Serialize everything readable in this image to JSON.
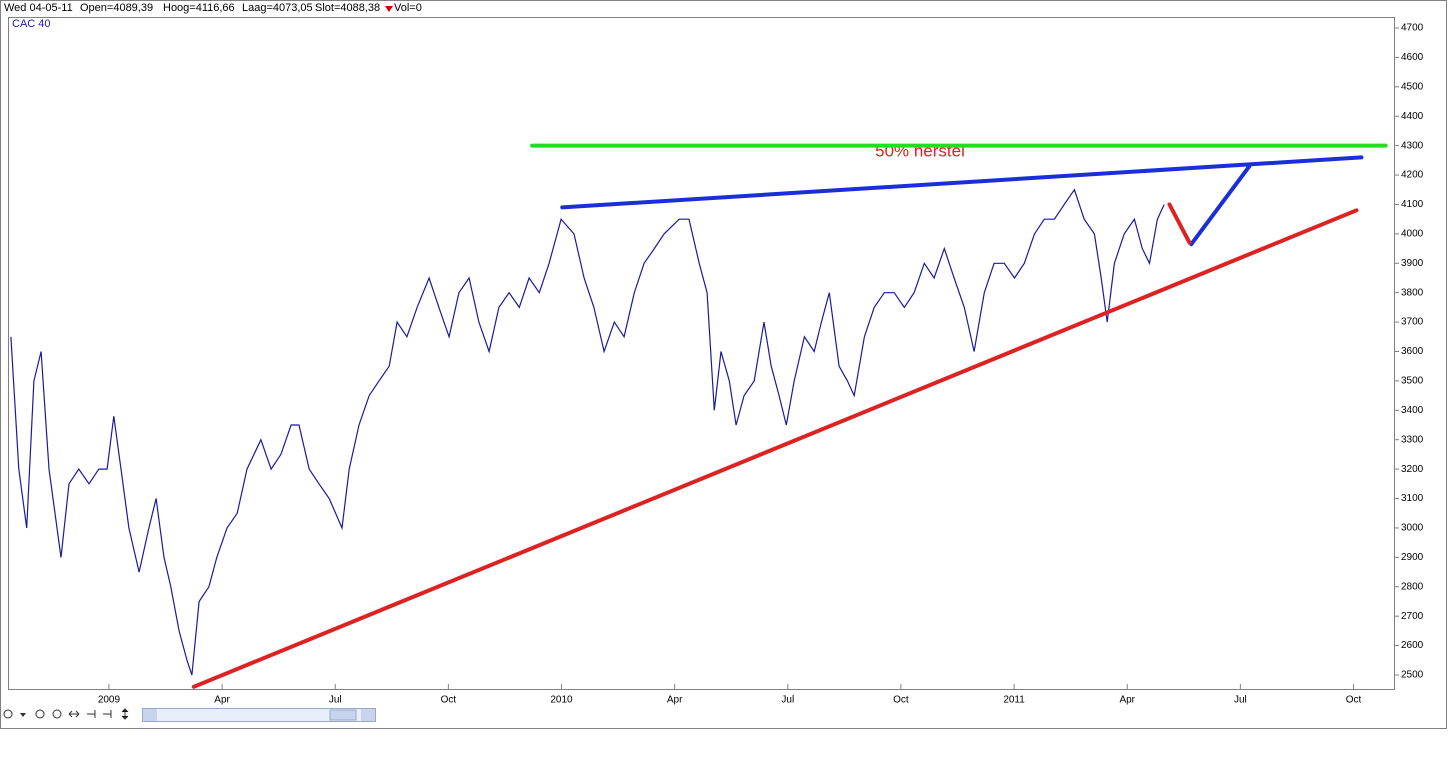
{
  "header": {
    "date": "Wed 04-05-11",
    "open": "Open=4089,39",
    "high": "Hoog=4116,66",
    "low": "Laag=4073,05",
    "close": "Slot=4088,38",
    "volume": "Vol=0"
  },
  "chart_data": {
    "type": "line",
    "title": "CAC 40",
    "annotation": "50% herstel",
    "xlim": [
      -2.65,
      34.1
    ],
    "ylim": [
      2449,
      4734
    ],
    "xticks": [
      {
        "value": 0,
        "label": "2009"
      },
      {
        "value": 3,
        "label": "Apr"
      },
      {
        "value": 6,
        "label": "Jul"
      },
      {
        "value": 9,
        "label": "Oct"
      },
      {
        "value": 12,
        "label": "2010"
      },
      {
        "value": 15,
        "label": "Apr"
      },
      {
        "value": 18,
        "label": "Jul"
      },
      {
        "value": 21,
        "label": "Oct"
      },
      {
        "value": 24,
        "label": "2011"
      },
      {
        "value": 27,
        "label": "Apr"
      },
      {
        "value": 30,
        "label": "Jul"
      },
      {
        "value": 33,
        "label": "Oct"
      }
    ],
    "yticks": [
      2500,
      2600,
      2700,
      2800,
      2900,
      3000,
      3100,
      3200,
      3300,
      3400,
      3500,
      3600,
      3700,
      3800,
      3900,
      4000,
      4100,
      4200,
      4300,
      4400,
      4500,
      4600,
      4700
    ],
    "grid": false,
    "series": [
      {
        "color": "#1a1aa0",
        "x": [
          -2.6,
          -2.39,
          -2.18,
          -1.99,
          -1.8,
          -1.59,
          -1.27,
          -1.06,
          -0.8,
          -0.53,
          -0.27,
          -0.05,
          0.13,
          0.32,
          0.53,
          0.8,
          1.06,
          1.25,
          1.46,
          1.64,
          1.86,
          2.07,
          2.2,
          2.39,
          2.65,
          2.86,
          3.13,
          3.4,
          3.66,
          4.03,
          4.3,
          4.56,
          4.83,
          5.04,
          5.31,
          5.57,
          5.84,
          6.18,
          6.37,
          6.63,
          6.9,
          7.16,
          7.43,
          7.64,
          7.9,
          8.17,
          8.49,
          8.75,
          9.02,
          9.28,
          9.55,
          9.81,
          10.08,
          10.34,
          10.61,
          10.88,
          11.14,
          11.41,
          11.67,
          11.99,
          12.33,
          12.6,
          12.86,
          13.13,
          13.4,
          13.66,
          13.93,
          14.19,
          14.46,
          14.72,
          15.12,
          15.38,
          15.65,
          15.86,
          16.05,
          16.23,
          16.45,
          16.63,
          16.84,
          17.11,
          17.37,
          17.56,
          17.77,
          17.96,
          18.17,
          18.44,
          18.7,
          18.89,
          19.1,
          19.36,
          19.58,
          19.76,
          20.03,
          20.29,
          20.56,
          20.82,
          21.09,
          21.35,
          21.62,
          21.88,
          22.15,
          22.41,
          22.68,
          22.94,
          23.21,
          23.47,
          23.74,
          24.01,
          24.27,
          24.54,
          24.8,
          25.07,
          25.33,
          25.6,
          25.86,
          26.13,
          26.31,
          26.47,
          26.66,
          26.92,
          27.19,
          27.4,
          27.59,
          27.8,
          27.98
        ],
        "values": [
          3650,
          3200,
          3000,
          3500,
          3600,
          3200,
          2900,
          3150,
          3200,
          3150,
          3200,
          3200,
          3380,
          3200,
          3000,
          2850,
          3000,
          3100,
          2900,
          2800,
          2650,
          2550,
          2500,
          2750,
          2800,
          2900,
          3000,
          3050,
          3200,
          3300,
          3200,
          3250,
          3350,
          3350,
          3200,
          3150,
          3100,
          3000,
          3200,
          3350,
          3450,
          3500,
          3550,
          3700,
          3650,
          3750,
          3850,
          3750,
          3650,
          3800,
          3850,
          3700,
          3600,
          3750,
          3800,
          3750,
          3850,
          3800,
          3900,
          4050,
          4000,
          3850,
          3750,
          3600,
          3700,
          3650,
          3800,
          3900,
          3950,
          4000,
          4050,
          4050,
          3900,
          3800,
          3400,
          3600,
          3500,
          3350,
          3450,
          3500,
          3700,
          3550,
          3450,
          3350,
          3500,
          3650,
          3600,
          3700,
          3800,
          3550,
          3500,
          3450,
          3650,
          3750,
          3800,
          3800,
          3750,
          3800,
          3900,
          3850,
          3950,
          3850,
          3750,
          3600,
          3800,
          3900,
          3900,
          3850,
          3900,
          4000,
          4050,
          4050,
          4100,
          4150,
          4050,
          4000,
          3850,
          3700,
          3900,
          4000,
          4050,
          3950,
          3900,
          4050,
          4100
        ]
      }
    ],
    "trend_lines": [
      {
        "color": "#22dd22",
        "x": [
          11.22,
          33.85
        ],
        "y": [
          4300,
          4300
        ]
      },
      {
        "color": "#1a2fd8",
        "x": [
          12.02,
          33.21
        ],
        "y": [
          4090,
          4260
        ]
      },
      {
        "color": "#dd2222",
        "x": [
          2.25,
          33.08
        ],
        "y": [
          2460,
          4080
        ]
      },
      {
        "color": "#1a2fd8",
        "x": [
          28.7,
          30.24
        ],
        "y": [
          3965,
          4230
        ]
      },
      {
        "color": "#dd2222",
        "x": [
          28.12,
          28.65
        ],
        "y": [
          4100,
          3970
        ]
      }
    ]
  }
}
